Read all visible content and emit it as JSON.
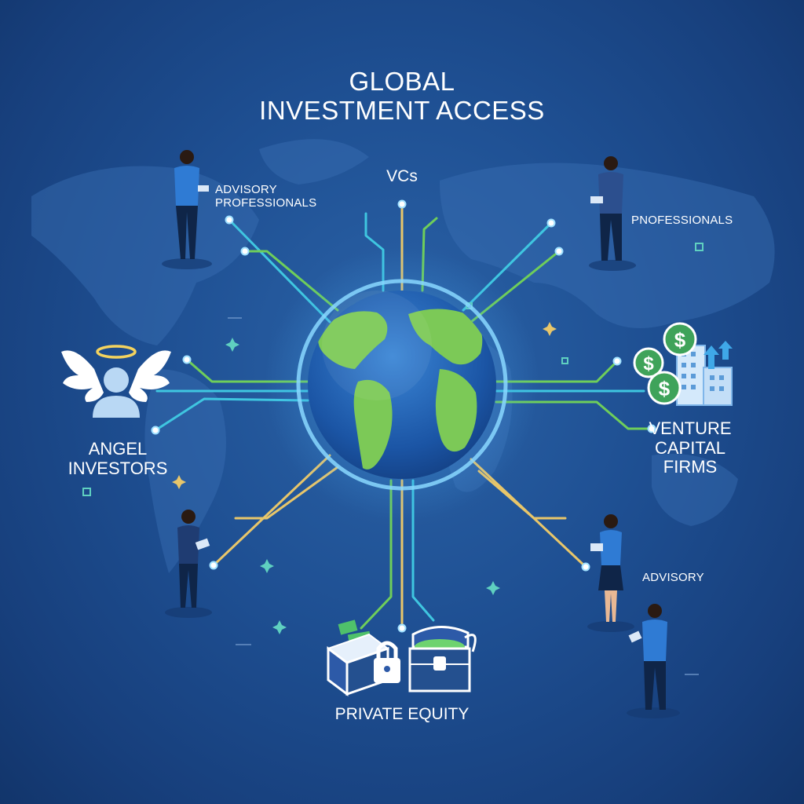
{
  "title": {
    "line1": "GLOBAL",
    "line2": "INVESTMENT ACCESS"
  },
  "labels": {
    "vcs": "VCs",
    "advisory_professionals_line1": "ADVISORY",
    "advisory_professionals_line2": "PROFESSIONALS",
    "professionals": "PNOFESSIONALS",
    "angel_line1": "ANGEL",
    "angel_line2": "INVESTORS",
    "venture_line1": "VENTURE",
    "venture_line2": "CAPITAL",
    "venture_line3": "FIRMS",
    "advisory": "ADVISORY",
    "private_equity": "PRIVATE EQUITY"
  },
  "icons": {
    "money_symbol": "$"
  },
  "colors": {
    "background": "#1e4f92",
    "line_cyan": "#3fc6e0",
    "line_green": "#6fce5a",
    "line_gold": "#e8c66a",
    "globe_ocean": "#1f5fae",
    "globe_land": "#7cc957",
    "halo": "#f4d35e",
    "money": "#5bc36a"
  }
}
